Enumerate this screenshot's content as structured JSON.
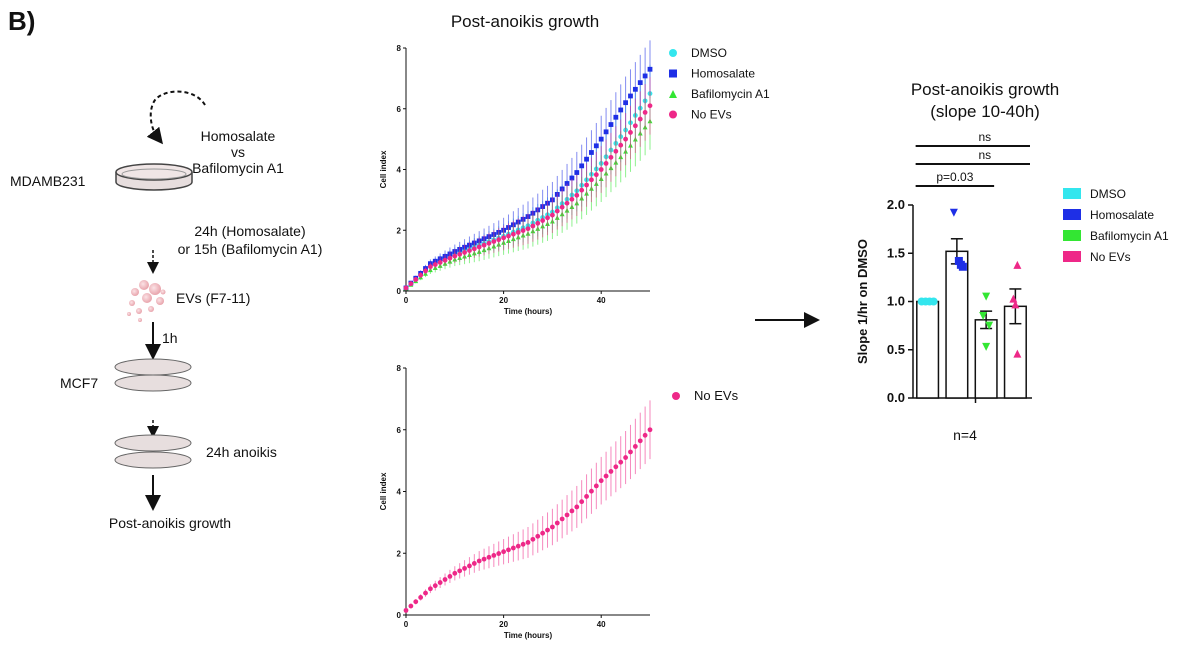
{
  "panel_label": "B)",
  "schematic": {
    "cell_line_1": "MDAMB231",
    "treatment_a": "Homosalate",
    "vs": "vs",
    "treatment_b": "Bafilomycin A1",
    "timing_line1": "24h (Homosalate)",
    "timing_line2": "or 15h (Bafilomycin A1)",
    "evs": "EVs (F7-11)",
    "incubation": "1h",
    "cell_line_2": "MCF7",
    "anoikis": "24h anoikis",
    "readout": "Post-anoikis growth"
  },
  "arrow_between_panels": "right-arrow",
  "colors": {
    "DMSO": "#33e6ee",
    "Homosalate": "#1e2fe6",
    "Bafilomycin A1": "#33e633",
    "No EVs": "#ee2888"
  },
  "chart_data": [
    {
      "type": "line",
      "title": "Post-anoikis growth",
      "xlabel": "Time (hours)",
      "ylabel": "Cell index",
      "xlim": [
        0,
        50
      ],
      "ylim": [
        0,
        8
      ],
      "xticks": [
        "0",
        "20",
        "40"
      ],
      "yticks": [
        "0",
        "2",
        "4",
        "6",
        "8"
      ],
      "legend_position": "top-right",
      "series": [
        {
          "name": "DMSO",
          "marker": "circle",
          "x": [
            0,
            5,
            10,
            15,
            20,
            25,
            30,
            35,
            40,
            45,
            50
          ],
          "y": [
            0.1,
            0.85,
            1.2,
            1.5,
            1.8,
            2.15,
            2.6,
            3.3,
            4.2,
            5.3,
            6.5
          ]
        },
        {
          "name": "Homosalate",
          "marker": "square",
          "x": [
            0,
            5,
            10,
            15,
            20,
            25,
            30,
            35,
            40,
            45,
            50
          ],
          "y": [
            0.1,
            0.9,
            1.3,
            1.65,
            2.0,
            2.45,
            3.0,
            3.9,
            5.0,
            6.2,
            7.3
          ]
        },
        {
          "name": "Bafilomycin A1",
          "marker": "triangle",
          "x": [
            0,
            5,
            10,
            15,
            20,
            25,
            30,
            35,
            40,
            45,
            50
          ],
          "y": [
            0.1,
            0.7,
            1.05,
            1.3,
            1.6,
            1.9,
            2.3,
            2.9,
            3.7,
            4.6,
            5.6
          ]
        },
        {
          "name": "No EVs",
          "marker": "circle",
          "x": [
            0,
            5,
            10,
            15,
            20,
            25,
            30,
            35,
            40,
            45,
            50
          ],
          "y": [
            0.1,
            0.8,
            1.15,
            1.45,
            1.75,
            2.05,
            2.5,
            3.15,
            4.0,
            5.0,
            6.1
          ]
        }
      ]
    },
    {
      "type": "line",
      "xlabel": "Time (hours)",
      "ylabel": "Cell index",
      "xlim": [
        0,
        50
      ],
      "ylim": [
        0,
        8
      ],
      "xticks": [
        "0",
        "20",
        "40"
      ],
      "yticks": [
        "0",
        "2",
        "4",
        "6",
        "8"
      ],
      "legend_position": "right",
      "series": [
        {
          "name": "No EVs",
          "marker": "circle",
          "x": [
            0,
            5,
            10,
            15,
            20,
            25,
            30,
            35,
            40,
            45,
            50
          ],
          "y": [
            0.15,
            0.85,
            1.35,
            1.75,
            2.05,
            2.35,
            2.85,
            3.5,
            4.35,
            5.1,
            6.0
          ]
        }
      ]
    },
    {
      "type": "bar",
      "title_line1": "Post-anoikis growth",
      "title_line2": "(slope 10-40h)",
      "ylabel": "Slope 1/hr on DMSO",
      "ylim": [
        0,
        2.0
      ],
      "yticks": [
        "0.0",
        "0.5",
        "1.0",
        "1.5",
        "2.0"
      ],
      "categories": [
        "DMSO",
        "Homosalate",
        "Bafilomycin A1",
        "No EVs"
      ],
      "values": [
        1.0,
        1.52,
        0.81,
        0.95
      ],
      "sem": [
        0.0,
        0.13,
        0.09,
        0.18
      ],
      "points": [
        [
          1.0,
          1.0,
          1.0,
          1.0
        ],
        [
          1.92,
          1.42,
          1.38,
          1.36
        ],
        [
          1.05,
          0.85,
          0.75,
          0.53
        ],
        [
          1.38,
          1.03,
          0.97,
          0.46
        ]
      ],
      "significance": [
        {
          "label": "p=0.03",
          "from": 0,
          "to": 2
        },
        {
          "label": "ns",
          "from": 0,
          "to": 3
        },
        {
          "label": "ns",
          "from": 0,
          "to": 3
        }
      ],
      "footnote": "n=4",
      "legend_position": "right"
    }
  ]
}
